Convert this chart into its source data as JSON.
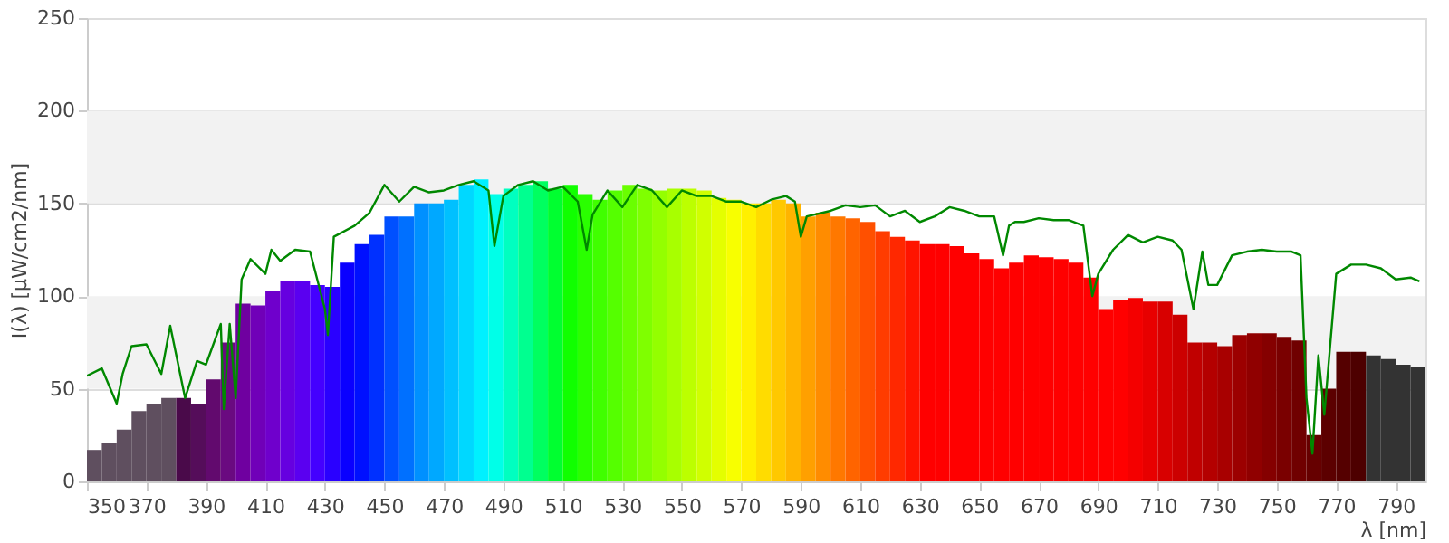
{
  "chart_data": {
    "type": "bar",
    "xlabel": "λ [nm]",
    "ylabel": "I(λ)  [µW/cm2/nm]",
    "xlim": [
      350,
      800
    ],
    "xticks": [
      350,
      370,
      390,
      410,
      430,
      450,
      470,
      490,
      510,
      530,
      550,
      570,
      590,
      610,
      630,
      650,
      670,
      690,
      710,
      730,
      750,
      770,
      790
    ],
    "ylim": [
      0,
      250
    ],
    "yticks": [
      0,
      50,
      100,
      150,
      200,
      250
    ],
    "grid": "y",
    "bands": [
      {
        "axis": "y",
        "from": 50,
        "to": 100,
        "color": "#f2f2f2"
      },
      {
        "axis": "y",
        "from": 150,
        "to": 200,
        "color": "#f2f2f2"
      }
    ],
    "series": [
      {
        "x": [
          352.5,
          357.5,
          362.5,
          367.5,
          372.5,
          377.5,
          382.5,
          387.5,
          392.5,
          397.5,
          402.5,
          407.5,
          412.5,
          417.5,
          422.5,
          427.5,
          432.5,
          437.5,
          442.5,
          447.5,
          452.5,
          457.5,
          462.5,
          467.5,
          472.5,
          477.5,
          482.5,
          487.5,
          492.5,
          497.5,
          502.5,
          507.5,
          512.5,
          517.5,
          522.5,
          527.5,
          532.5,
          537.5,
          542.5,
          547.5,
          552.5,
          557.5,
          562.5,
          567.5,
          572.5,
          577.5,
          582.5,
          587.5,
          592.5,
          597.5,
          602.5,
          607.5,
          612.5,
          617.5,
          622.5,
          627.5,
          632.5,
          637.5,
          642.5,
          647.5,
          652.5,
          657.5,
          662.5,
          667.5,
          672.5,
          677.5,
          682.5,
          687.5,
          692.5,
          697.5,
          702.5,
          707.5,
          712.5,
          717.5,
          722.5,
          727.5,
          732.5,
          737.5,
          742.5,
          747.5,
          752.5,
          757.5,
          762.5,
          767.5,
          772.5,
          777.5,
          782.5,
          787.5,
          792.5,
          797.5
        ],
        "values": [
          17,
          21,
          28,
          38,
          42,
          45,
          45,
          42,
          55,
          75,
          96,
          95,
          103,
          108,
          108,
          106,
          105,
          118,
          128,
          133,
          143,
          143,
          150,
          150,
          152,
          160,
          163,
          155,
          158,
          160,
          162,
          158,
          160,
          155,
          152,
          157,
          160,
          158,
          157,
          158,
          158,
          157,
          153,
          152,
          150,
          150,
          152,
          150,
          143,
          145,
          143,
          142,
          140,
          135,
          132,
          130,
          128,
          128,
          127,
          123,
          120,
          115,
          118,
          122,
          121,
          120,
          118,
          110,
          93,
          98,
          99,
          97,
          97,
          90,
          75,
          75,
          73,
          79,
          80,
          80,
          78,
          76,
          25,
          50,
          70,
          70,
          68,
          66,
          63,
          62
        ],
        "colors": [
          "#5f4f5f",
          "#5f4f5f",
          "#5f4f5f",
          "#5f4f5f",
          "#5f4f5f",
          "#5f4f5f",
          "#4a0a4a",
          "#550d5a",
          "#620a6e",
          "#6a0a80",
          "#6f00a0",
          "#7000b8",
          "#6f00cc",
          "#6600e0",
          "#5a00f0",
          "#4400ff",
          "#2a00ff",
          "#0a00ff",
          "#0010ff",
          "#0030ff",
          "#0050ff",
          "#0070ff",
          "#0090ff",
          "#00a8ff",
          "#00c0ff",
          "#00d8ff",
          "#00f0ff",
          "#00ffe8",
          "#00ffc0",
          "#00ff90",
          "#00ff60",
          "#00ff30",
          "#10ff00",
          "#2aff00",
          "#40ff00",
          "#55ff00",
          "#6aff00",
          "#7fff00",
          "#94ff00",
          "#a8ff00",
          "#bcff00",
          "#d0ff00",
          "#e4ff00",
          "#f8ff00",
          "#fff000",
          "#ffdc00",
          "#ffc800",
          "#ffb400",
          "#ffa000",
          "#ff8c00",
          "#ff7800",
          "#ff6400",
          "#ff5000",
          "#ff3c00",
          "#ff2800",
          "#ff1400",
          "#ff0000",
          "#ff0000",
          "#ff0000",
          "#ff0000",
          "#ff0000",
          "#ff0000",
          "#ff0000",
          "#ff0000",
          "#ff0000",
          "#ff0000",
          "#ff0000",
          "#ff0000",
          "#ff0000",
          "#ff0000",
          "#f40000",
          "#e80000",
          "#d80000",
          "#cc0000",
          "#c00000",
          "#b40000",
          "#a80000",
          "#9c0000",
          "#900000",
          "#850000",
          "#7a0000",
          "#700000",
          "#660000",
          "#5c0000",
          "#550000",
          "#4d0000",
          "#333333",
          "#333333",
          "#333333",
          "#333333"
        ]
      },
      {
        "type": "line",
        "color": "#008800",
        "line_style": "solid",
        "marker": "none",
        "x": [
          350,
          355,
          360,
          362,
          365,
          370,
          375,
          378,
          383,
          387,
          390,
          395,
          396,
          398,
          400,
          402,
          405,
          410,
          412,
          415,
          420,
          425,
          430,
          431,
          433,
          440,
          445,
          450,
          455,
          460,
          465,
          470,
          475,
          480,
          485,
          487,
          490,
          495,
          500,
          505,
          510,
          515,
          518,
          520,
          525,
          530,
          535,
          540,
          545,
          550,
          555,
          560,
          565,
          570,
          575,
          580,
          585,
          588,
          590,
          592,
          600,
          605,
          610,
          615,
          620,
          625,
          630,
          635,
          640,
          645,
          650,
          655,
          658,
          660,
          662,
          665,
          670,
          675,
          680,
          685,
          688,
          690,
          695,
          700,
          705,
          710,
          715,
          718,
          722,
          725,
          727,
          730,
          735,
          740,
          745,
          750,
          755,
          758,
          760,
          762,
          764,
          766,
          770,
          775,
          780,
          785,
          790,
          795,
          798
        ],
        "values": [
          57,
          61,
          42,
          58,
          73,
          74,
          58,
          84,
          45,
          65,
          63,
          85,
          39,
          85,
          45,
          109,
          120,
          112,
          125,
          119,
          125,
          124,
          93,
          79,
          132,
          138,
          145,
          160,
          151,
          159,
          156,
          157,
          160,
          162,
          157,
          127,
          154,
          160,
          162,
          157,
          159,
          151,
          125,
          144,
          157,
          148,
          160,
          157,
          148,
          157,
          154,
          154,
          151,
          151,
          148,
          152,
          154,
          151,
          132,
          143,
          146,
          149,
          148,
          149,
          143,
          146,
          140,
          143,
          148,
          146,
          143,
          143,
          122,
          138,
          140,
          140,
          142,
          141,
          141,
          138,
          100,
          112,
          125,
          133,
          129,
          132,
          130,
          125,
          93,
          124,
          106,
          106,
          122,
          124,
          125,
          124,
          124,
          122,
          45,
          15,
          68,
          36,
          112,
          117,
          117,
          115,
          109,
          110,
          108
        ]
      }
    ]
  }
}
